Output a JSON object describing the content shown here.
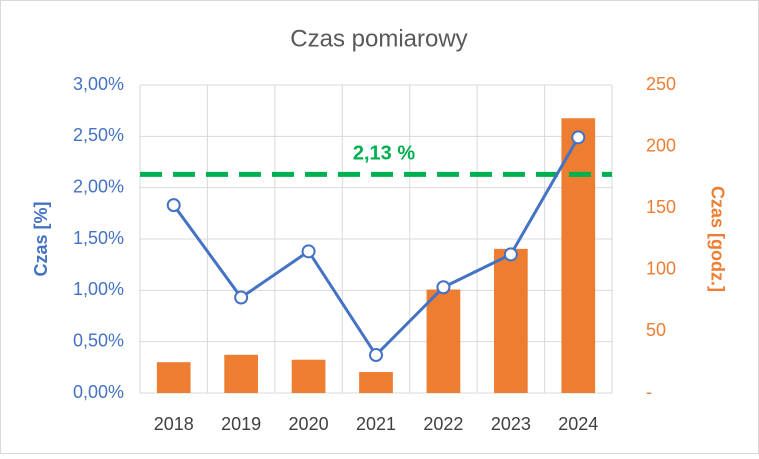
{
  "chart_data": {
    "type": "combo",
    "title": "Czas pomiarowy",
    "categories": [
      "2018",
      "2019",
      "2020",
      "2021",
      "2022",
      "2023",
      "2024"
    ],
    "series": [
      {
        "name": "Czas [godz.]",
        "type": "bar",
        "axis": "y2",
        "color": "#ed7d31",
        "values": [
          25,
          31,
          27,
          17,
          84,
          117,
          223
        ]
      },
      {
        "name": "Czas [%]",
        "type": "line",
        "axis": "y",
        "color": "#4472c4",
        "values": [
          1.83,
          0.93,
          1.38,
          0.37,
          1.03,
          1.35,
          2.49
        ]
      }
    ],
    "ylabel": "Czas [%]",
    "y2label": "Czas [godz.]",
    "ylim": [
      0,
      3
    ],
    "yticks": [
      {
        "value": 0,
        "label": "0,00%"
      },
      {
        "value": 0.5,
        "label": "0,50%"
      },
      {
        "value": 1,
        "label": "1,00%"
      },
      {
        "value": 1.5,
        "label": "1,50%"
      },
      {
        "value": 2,
        "label": "2,00%"
      },
      {
        "value": 2.5,
        "label": "2,50%"
      },
      {
        "value": 3,
        "label": "3,00%"
      }
    ],
    "y2lim": [
      0,
      250
    ],
    "y2ticks": [
      {
        "value": 0,
        "label": "-"
      },
      50,
      100,
      150,
      200,
      250
    ],
    "reference_line": {
      "value": 2.13,
      "label": "2,13 %",
      "color": "#00b050"
    },
    "grid": true
  }
}
